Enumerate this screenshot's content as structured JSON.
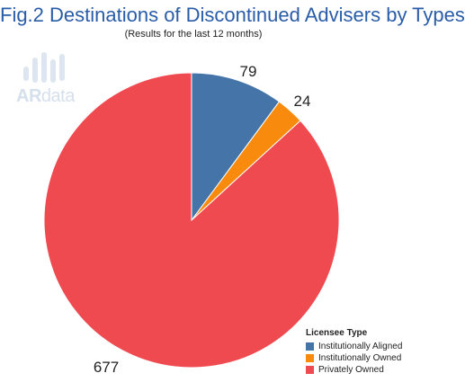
{
  "title": "Fig.2 Destinations of Discontinued Advisers by Types",
  "subtitle": "(Results for the last 12 months)",
  "logo": {
    "bold": "AR",
    "light": "data",
    "icon": "bar-signal-icon"
  },
  "chart_data": {
    "type": "pie",
    "title": "Fig.2 Destinations of Discontinued Advisers by Types",
    "subtitle": "(Results for the last 12 months)",
    "legend_title": "Licensee Type",
    "legend_position": "bottom-right",
    "slices": [
      {
        "label": "Institutionally Aligned",
        "value": 79,
        "display": "79",
        "color": "#4474a8"
      },
      {
        "label": "Institutionally Owned",
        "value": 24,
        "display": "24",
        "color": "#f88b0e"
      },
      {
        "label": "Privately Owned",
        "value": 677,
        "display": "677",
        "color": "#f04a51"
      }
    ]
  }
}
